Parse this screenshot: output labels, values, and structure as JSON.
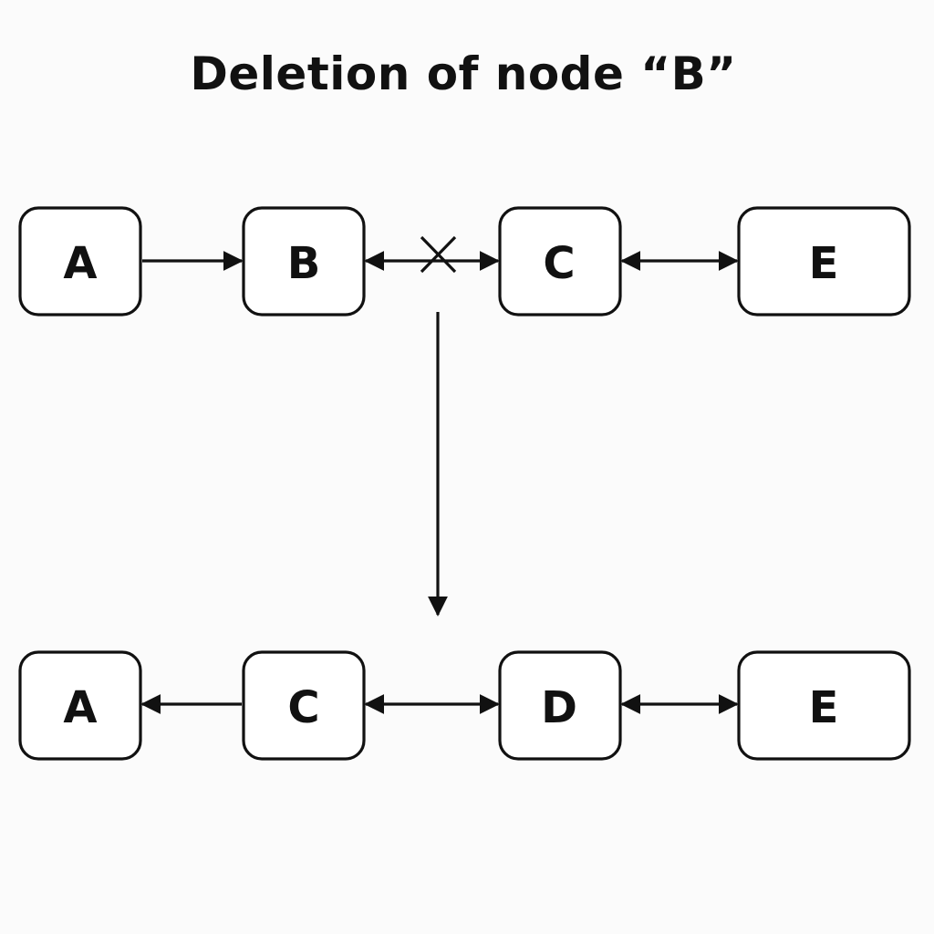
{
  "title": "Deletion of node “B”",
  "colors": {
    "stroke": "#111111",
    "background": "#fbfbfb",
    "node_fill": "#ffffff"
  },
  "before": {
    "nodes": [
      "A",
      "B",
      "C",
      "E"
    ],
    "links": [
      {
        "from": "A",
        "to": "B",
        "direction": "forward"
      },
      {
        "from": "B",
        "to": "C",
        "direction": "both",
        "broken": true
      },
      {
        "from": "C",
        "to": "E",
        "direction": "both"
      }
    ]
  },
  "transition": {
    "direction": "down"
  },
  "after": {
    "nodes": [
      "A",
      "C",
      "D",
      "E"
    ],
    "links": [
      {
        "from": "A",
        "to": "C",
        "direction": "backward"
      },
      {
        "from": "C",
        "to": "D",
        "direction": "both"
      },
      {
        "from": "D",
        "to": "E",
        "direction": "both"
      }
    ]
  }
}
